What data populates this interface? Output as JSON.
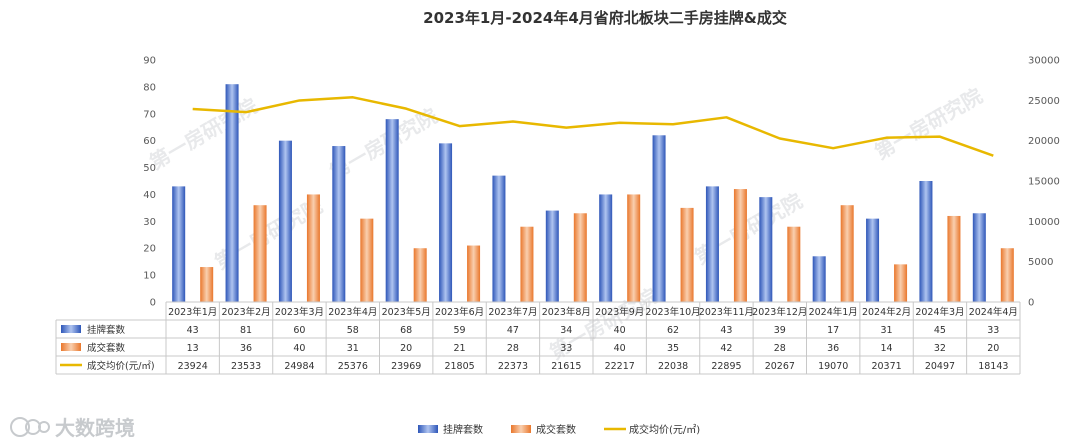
{
  "chart_data": {
    "type": "bar",
    "title": "2023年1月-2024年4月省府北板块二手房挂牌&成交",
    "categories": [
      "2023年1月",
      "2023年2月",
      "2023年3月",
      "2023年4月",
      "2023年5月",
      "2023年6月",
      "2023年7月",
      "2023年8月",
      "2023年9月",
      "2023年10月",
      "2023年11月",
      "2023年12月",
      "2024年1月",
      "2024年2月",
      "2024年3月",
      "2024年4月"
    ],
    "series": [
      {
        "name": "挂牌套数",
        "kind": "bar",
        "axis": "left",
        "color": "#4472C4",
        "values": [
          43,
          81,
          60,
          58,
          68,
          59,
          47,
          34,
          40,
          62,
          43,
          39,
          17,
          31,
          45,
          33
        ]
      },
      {
        "name": "成交套数",
        "kind": "bar",
        "axis": "left",
        "color": "#ED7D31",
        "values": [
          13,
          36,
          40,
          31,
          20,
          21,
          28,
          33,
          40,
          35,
          42,
          28,
          36,
          14,
          32,
          20
        ]
      },
      {
        "name": "成交均价(元/㎡)",
        "kind": "line",
        "axis": "right",
        "color": "#E8B800",
        "values": [
          23924,
          23533,
          24984,
          25376,
          23969,
          21805,
          22373,
          21615,
          22217,
          22038,
          22895,
          20267,
          19070,
          20371,
          20497,
          18143
        ]
      }
    ],
    "ylim_left": [
      0,
      90
    ],
    "yticks_left": [
      0,
      10,
      20,
      30,
      40,
      50,
      60,
      70,
      80,
      90
    ],
    "ylim_right": [
      0,
      30000
    ],
    "yticks_right": [
      0,
      5000,
      10000,
      15000,
      20000,
      25000,
      30000
    ],
    "grid": false,
    "legend": "bottom",
    "data_table": true
  },
  "watermark": "第一房研究院",
  "brand": "大数跨境"
}
